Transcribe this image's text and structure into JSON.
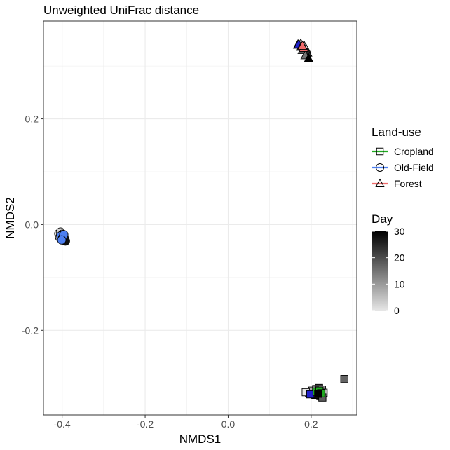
{
  "chart_data": {
    "type": "scatter",
    "title": "Unweighted UniFrac distance",
    "xlabel": "NMDS1",
    "ylabel": "NMDS2",
    "xlim": [
      -0.445,
      0.31
    ],
    "ylim": [
      -0.36,
      0.385
    ],
    "x_ticks": [
      -0.4,
      -0.2,
      0.0,
      0.2
    ],
    "x_tick_labels": [
      "-0.4",
      "-0.2",
      "0.0",
      "0.2"
    ],
    "y_ticks": [
      -0.2,
      0.0,
      0.2
    ],
    "y_tick_labels": [
      "-0.2",
      "0.0",
      "0.2"
    ],
    "grid": true,
    "legend_landuse": {
      "title": "Land-use",
      "items": [
        {
          "label": "Cropland",
          "color": "#1faa1f",
          "shape": "square"
        },
        {
          "label": "Old-Field",
          "color": "#4d7ff0",
          "shape": "circle"
        },
        {
          "label": "Forest",
          "color": "#f06b6b",
          "shape": "triangle"
        }
      ]
    },
    "legend_day": {
      "title": "Day",
      "min": 0,
      "max": 30,
      "ticks": [
        0,
        10,
        20,
        30
      ],
      "tick_labels": [
        "0",
        "10",
        "20",
        "30"
      ]
    },
    "series": [
      {
        "name": "Old-Field",
        "shape": "circle",
        "color": "#4d7ff0",
        "points": [
          {
            "x": -0.408,
            "y": -0.017,
            "day": 0
          },
          {
            "x": -0.404,
            "y": -0.014,
            "day": 3
          },
          {
            "x": -0.399,
            "y": -0.018,
            "day": 7
          },
          {
            "x": -0.396,
            "y": -0.022,
            "day": 14
          },
          {
            "x": -0.4,
            "y": -0.026,
            "day": 30
          },
          {
            "x": -0.394,
            "y": -0.027,
            "day": 21
          },
          {
            "x": -0.406,
            "y": -0.024,
            "day": 10
          },
          {
            "x": -0.392,
            "y": -0.031,
            "day": 28
          },
          {
            "x": -0.403,
            "y": -0.021,
            "fill": "#4d7ff0"
          },
          {
            "x": -0.399,
            "y": -0.025,
            "fill": "#4d7ff0"
          },
          {
            "x": -0.396,
            "y": -0.019,
            "fill": "#4d7ff0"
          },
          {
            "x": -0.401,
            "y": -0.029,
            "fill": "#4d7ff0"
          }
        ]
      },
      {
        "name": "Forest",
        "shape": "triangle",
        "color": "#f06b6b",
        "points": [
          {
            "x": 0.168,
            "y": 0.34,
            "day": 5
          },
          {
            "x": 0.175,
            "y": 0.342,
            "day": 1
          },
          {
            "x": 0.183,
            "y": 0.338,
            "day": 12
          },
          {
            "x": 0.188,
            "y": 0.332,
            "day": 3
          },
          {
            "x": 0.179,
            "y": 0.33,
            "day": 18
          },
          {
            "x": 0.191,
            "y": 0.325,
            "day": 25
          },
          {
            "x": 0.186,
            "y": 0.32,
            "day": 15
          },
          {
            "x": 0.194,
            "y": 0.314,
            "day": 30
          },
          {
            "x": 0.17,
            "y": 0.341,
            "fill": "#2020cc"
          },
          {
            "x": 0.176,
            "y": 0.336,
            "fill": "#f06b6b"
          },
          {
            "x": 0.182,
            "y": 0.334,
            "fill": "#f06b6b"
          },
          {
            "x": 0.179,
            "y": 0.338,
            "fill": "#f06b6b"
          }
        ]
      },
      {
        "name": "Cropland",
        "shape": "square",
        "color": "#1faa1f",
        "points": [
          {
            "x": 0.195,
            "y": -0.318,
            "day": 2
          },
          {
            "x": 0.203,
            "y": -0.314,
            "day": 8
          },
          {
            "x": 0.212,
            "y": -0.311,
            "day": 15
          },
          {
            "x": 0.219,
            "y": -0.309,
            "day": 22
          },
          {
            "x": 0.226,
            "y": -0.312,
            "day": 12
          },
          {
            "x": 0.23,
            "y": -0.318,
            "day": 6
          },
          {
            "x": 0.222,
            "y": -0.323,
            "day": 10
          },
          {
            "x": 0.21,
            "y": -0.322,
            "day": 27
          },
          {
            "x": 0.2,
            "y": -0.32,
            "day": 4
          },
          {
            "x": 0.227,
            "y": -0.327,
            "day": 18
          },
          {
            "x": 0.187,
            "y": -0.317,
            "day": 0
          },
          {
            "x": 0.28,
            "y": -0.292,
            "day": 17
          },
          {
            "x": 0.198,
            "y": -0.321,
            "fill": "#2020cc"
          },
          {
            "x": 0.213,
            "y": -0.316,
            "fill": "#1faa1f"
          },
          {
            "x": 0.22,
            "y": -0.314,
            "fill": "#1faa1f"
          },
          {
            "x": 0.224,
            "y": -0.319,
            "fill": "#1faa1f"
          },
          {
            "x": 0.217,
            "y": -0.32,
            "day": 30
          }
        ]
      }
    ]
  }
}
